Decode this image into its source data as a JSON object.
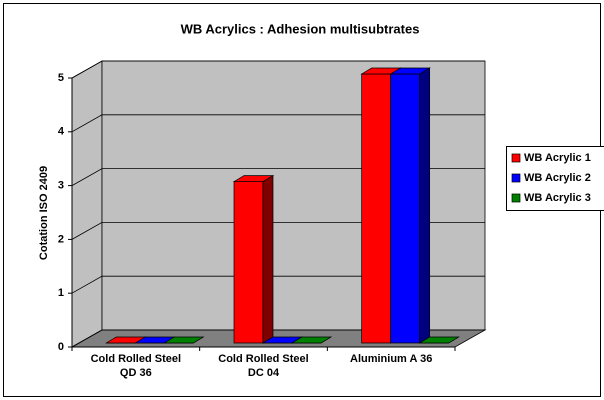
{
  "chart_data": {
    "type": "bar3d",
    "title": "WB Acrylics : Adhesion multisubtrates",
    "y_label": "Cotation ISO 2409",
    "categories": [
      "Cold Rolled Steel\nQD 36",
      "Cold Rolled Steel\nDC 04",
      "Aluminium A 36"
    ],
    "series": [
      {
        "name": "WB Acrylic 1",
        "color": "#ff0000",
        "values": [
          0,
          3,
          5
        ]
      },
      {
        "name": "WB Acrylic 2",
        "color": "#0000ff",
        "values": [
          0,
          0,
          5
        ]
      },
      {
        "name": "WB Acrylic 3",
        "color": "#008000",
        "values": [
          0,
          0,
          0
        ]
      }
    ],
    "ylim": [
      0,
      5
    ],
    "yticks": [
      0,
      1,
      2,
      3,
      4,
      5
    ],
    "grid": true,
    "legend": "right"
  }
}
